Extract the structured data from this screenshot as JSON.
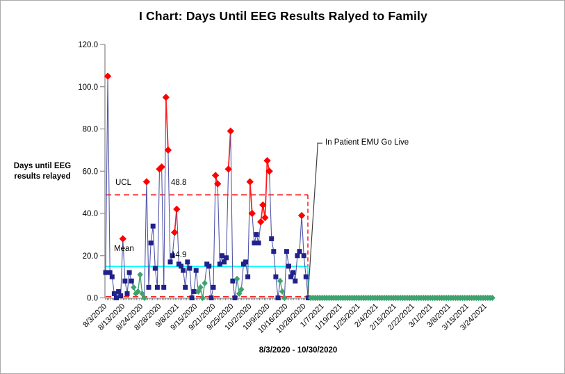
{
  "window": {
    "bg": "#ffffff",
    "border": "#ababab"
  },
  "chart_data": {
    "type": "line",
    "subtype": "individuals-control-chart",
    "title": "I Chart: Days Until EEG Results Ralyed to Family",
    "ylabel_line1": "Days until EEG",
    "ylabel_line2": "results relayed",
    "xlabel": "8/3/2020 - 10/30/2020",
    "ylim": [
      0,
      120
    ],
    "grid": false,
    "legend": "none",
    "yticks": {
      "values": [
        120,
        100,
        80,
        60,
        40,
        20,
        0
      ],
      "labels": [
        "120.0",
        "100.0",
        "80.0",
        "60.0",
        "40.0",
        "20.0",
        "0.0"
      ]
    },
    "xticklabels": [
      "8/3/2020",
      "8/13/2020",
      "8/24/2020",
      "8/28/2020",
      "9/8/2021",
      "9/15/2020",
      "9/21/2020",
      "9/25/2020",
      "10/2/2020",
      "10/9/2020",
      "10/16/2020",
      "10/28/2020",
      "1/7/2021",
      "1/19/2021",
      "1/25/2021",
      "2/4/2021",
      "2/15/2021",
      "2/22/2021",
      "3/1/2021",
      "3/8/2021",
      "3/15/2021",
      "3/24/2021"
    ],
    "control_limits": {
      "ucl_label": "UCL",
      "ucl_value": 48.8,
      "ucl_value_label": "48.8",
      "mean_label": "Mean",
      "mean_value": 14.9,
      "mean_value_label": "14.9",
      "lcl_value": 0,
      "phase2_center_value": 0
    },
    "annotation": {
      "text": "In Patient EMU Go Live"
    },
    "series": {
      "phase1_points": [
        [
          12,
          "n"
        ],
        [
          105,
          "r"
        ],
        [
          12,
          "n"
        ],
        [
          10,
          "n"
        ],
        [
          2,
          "n"
        ],
        [
          0,
          "n"
        ],
        [
          3,
          "n"
        ],
        [
          1,
          "n"
        ],
        [
          28,
          "r"
        ],
        [
          8,
          "n"
        ],
        [
          2,
          "n"
        ],
        [
          12,
          "n"
        ],
        [
          8,
          "n"
        ],
        [
          5,
          "g"
        ],
        [
          2,
          "g"
        ],
        [
          3,
          "g"
        ],
        [
          11,
          "g"
        ],
        [
          2,
          "g"
        ],
        [
          0,
          "g"
        ],
        [
          55,
          "r"
        ],
        [
          5,
          "n"
        ],
        [
          26,
          "n"
        ],
        [
          34,
          "n"
        ],
        [
          14,
          "n"
        ],
        [
          5,
          "n"
        ],
        [
          61,
          "r"
        ],
        [
          62,
          "r"
        ],
        [
          5,
          "n"
        ],
        [
          95,
          "r"
        ],
        [
          70,
          "r"
        ],
        [
          17,
          "n"
        ],
        [
          20,
          "n"
        ],
        [
          31,
          "r"
        ],
        [
          42,
          "r"
        ],
        [
          16,
          "n"
        ],
        [
          15,
          "n"
        ],
        [
          13,
          "n"
        ],
        [
          5,
          "n"
        ],
        [
          17,
          "n"
        ],
        [
          14,
          "n"
        ],
        [
          0,
          "n"
        ],
        [
          3,
          "n"
        ],
        [
          13,
          "n"
        ],
        [
          3,
          "g"
        ],
        [
          5,
          "g"
        ],
        [
          0,
          "g"
        ],
        [
          7,
          "g"
        ],
        [
          16,
          "n"
        ],
        [
          15,
          "n"
        ],
        [
          0,
          "n"
        ],
        [
          5,
          "n"
        ],
        [
          58,
          "r"
        ],
        [
          54,
          "r"
        ],
        [
          16,
          "n"
        ],
        [
          20,
          "n"
        ],
        [
          17,
          "n"
        ],
        [
          19,
          "n"
        ],
        [
          61,
          "r"
        ],
        [
          79,
          "r"
        ],
        [
          8,
          "n"
        ],
        [
          0,
          "n"
        ],
        [
          9,
          "g"
        ],
        [
          2,
          "g"
        ],
        [
          4,
          "g"
        ],
        [
          16,
          "n"
        ],
        [
          17,
          "n"
        ],
        [
          10,
          "n"
        ],
        [
          55,
          "r"
        ],
        [
          40,
          "r"
        ],
        [
          26,
          "n"
        ],
        [
          30,
          "n"
        ],
        [
          26,
          "n"
        ],
        [
          36,
          "r"
        ],
        [
          44,
          "r"
        ],
        [
          38,
          "r"
        ],
        [
          65,
          "r"
        ],
        [
          60,
          "r"
        ],
        [
          28,
          "n"
        ],
        [
          22,
          "n"
        ],
        [
          10,
          "n"
        ],
        [
          0,
          "n"
        ],
        [
          8,
          "g"
        ],
        [
          3,
          "g"
        ],
        [
          0,
          "g"
        ],
        [
          22,
          "n"
        ],
        [
          15,
          "n"
        ],
        [
          10,
          "n"
        ],
        [
          12,
          "n"
        ],
        [
          8,
          "n"
        ],
        [
          20,
          "n"
        ],
        [
          22,
          "n"
        ],
        [
          39,
          "r"
        ],
        [
          20,
          "n"
        ],
        [
          10,
          "n"
        ],
        [
          0,
          "n"
        ]
      ],
      "phase2_run": {
        "count": 80,
        "value": 0,
        "marker": "g"
      }
    },
    "colors": {
      "navy_marker": "#21218b",
      "red_marker": "#ff0000",
      "green_marker": "#3ea26e",
      "connector": "#5156a6",
      "red_connector": "#fb1f1f",
      "green_connector": "#3ea26e",
      "mean_line": "#00ffff",
      "limit_line": "#ff0000",
      "phase2_center_dark": "#a0352a",
      "phase2_center_dash": "#00e5e5",
      "axis": "#8c8c8c",
      "tick_comb": "#5a5a5a",
      "callout": "#3f3f3f",
      "text": "#000000"
    }
  }
}
